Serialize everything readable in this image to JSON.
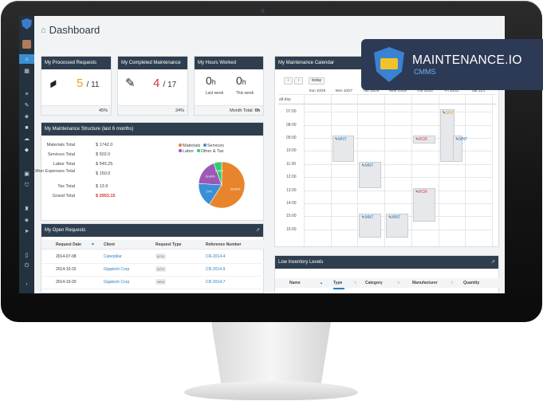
{
  "page": {
    "title": "Dashboard"
  },
  "brand": {
    "name": "MAINTENANCE.IO",
    "sub": "CMMS"
  },
  "stats": [
    {
      "title": "My Processed Requests",
      "value": "5",
      "total": "/ 11",
      "footer": "45%",
      "value_color": "#e8a21c"
    },
    {
      "title": "My Completed Maintenance",
      "value": "4",
      "total": "/ 17",
      "footer": "24%",
      "value_color": "#d9342b"
    },
    {
      "title": "My Hours Worked",
      "last_value": "0",
      "last_unit": "h",
      "last_label": "Last week",
      "this_value": "0",
      "this_unit": "h",
      "this_label": "This week",
      "footer_label": "Month Total:",
      "footer_value": "0h"
    }
  ],
  "structure": {
    "title": "My Maintenance Structure (last 6 months)",
    "rows": [
      {
        "label": "Materials Total",
        "value": "$ 1742.0"
      },
      {
        "label": "Services Total",
        "value": "$ 502.0"
      },
      {
        "label": "Labor Total",
        "value": "$ 545.25"
      },
      {
        "label": "Other Expenses Total",
        "value": "$ 150.0"
      },
      {
        "label": "Tax Total",
        "value": "$ 13.9"
      },
      {
        "label": "Grand Total",
        "value": "$ 2953.15"
      }
    ],
    "legend": [
      {
        "label": "Materials",
        "color": "#e8842c"
      },
      {
        "label": "Services",
        "color": "#3a8fd6"
      },
      {
        "label": "Labor",
        "color": "#9b59b6"
      },
      {
        "label": "Other & Tax",
        "color": "#2ecc71"
      }
    ],
    "pie": [
      {
        "label": "Materials",
        "percent": 58.99,
        "color": "#e8842c",
        "text": "58,99%"
      },
      {
        "label": "Services",
        "percent": 17.0,
        "color": "#3a8fd6",
        "text": "17%"
      },
      {
        "label": "Labor",
        "percent": 18.46,
        "color": "#9b59b6",
        "text": "18,46%"
      },
      {
        "label": "Other & Tax",
        "percent": 5.55,
        "color": "#2ecc71",
        "text": "5,55%"
      }
    ]
  },
  "requests": {
    "title": "My Open Requests",
    "columns": [
      "Request Date",
      "Client",
      "Request Type",
      "Reference Number"
    ],
    "rows": [
      {
        "date": "2014-07-08",
        "client": "Caterpillar",
        "type": "MTN",
        "ref": "CR-2014-4"
      },
      {
        "date": "2014-10-15",
        "client": "Gigatech Corp",
        "type": "MTN",
        "ref": "CR-2014-9"
      },
      {
        "date": "2014-10-20",
        "client": "Gigatech Corp",
        "type": "NEW",
        "ref": "CR-2014-7"
      }
    ]
  },
  "calendar": {
    "title": "My Maintenance Calendar",
    "prev": "‹",
    "next": "›",
    "today": "today",
    "allday": "all-day",
    "days": [
      "Sun 10/26",
      "Mon 10/27",
      "Tue 10/28",
      "Wed 10/29",
      "Thu 10/30",
      "Fri 10/31",
      "Sat 11/1"
    ],
    "times": [
      "07:00",
      "08:00",
      "09:00",
      "10:00",
      "11:00",
      "12:00",
      "13:00",
      "14:00",
      "15:00",
      "16:00"
    ],
    "events": [
      {
        "label": "MNT",
        "kind": "mnt",
        "day": 1,
        "start": 9.0,
        "end": 11.0
      },
      {
        "label": "MNT",
        "kind": "mnt",
        "day": 2,
        "start": 11.0,
        "end": 13.0
      },
      {
        "label": "RCR",
        "kind": "rcr",
        "day": 4,
        "start": 9.0,
        "end": 9.6
      },
      {
        "label": "SRV",
        "kind": "srv",
        "day": 5,
        "start": 7.0,
        "end": 11.0
      },
      {
        "label": "MNT",
        "kind": "mnt",
        "day": 6,
        "start": 9.0,
        "end": 11.0
      },
      {
        "label": "RCR",
        "kind": "rcr",
        "day": 4,
        "start": 13.0,
        "end": 15.6
      },
      {
        "label": "MNT",
        "kind": "mnt",
        "day": 2,
        "start": 15.0,
        "end": 16.8
      },
      {
        "label": "MNT",
        "kind": "mnt",
        "day": 3,
        "start": 15.0,
        "end": 16.8
      }
    ]
  },
  "inventory": {
    "title": "Low Inventory Levels",
    "columns": [
      "Name",
      "Type",
      "Category",
      "Manufacturer",
      "Quantity"
    ]
  },
  "sidebar": {
    "items": [
      "home",
      "calendar",
      "list",
      "wrench",
      "tag",
      "briefcase",
      "cloud",
      "building",
      "shield",
      "trophy",
      "tag2",
      "send",
      "mobile",
      "power",
      "chevron"
    ]
  }
}
